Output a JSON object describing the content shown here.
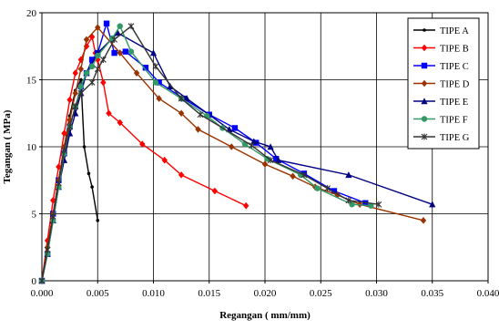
{
  "chart_data": {
    "type": "line",
    "title": "",
    "xlabel": "Regangan ( mm/mm)",
    "ylabel": "Tegangan ( MPa)",
    "xlim": [
      0,
      0.04
    ],
    "ylim": [
      0,
      20
    ],
    "x_ticks": [
      "0.000",
      "0.005",
      "0.010",
      "0.015",
      "0.020",
      "0.025",
      "0.030",
      "0.035",
      "0.040"
    ],
    "y_ticks": [
      "0",
      "5",
      "10",
      "15",
      "20"
    ],
    "grid": true,
    "legend_position": "top-right",
    "series": [
      {
        "name": "TIPE A",
        "color": "#000000",
        "marker": "dot",
        "points": [
          [
            0,
            0
          ],
          [
            0.0005,
            2.5
          ],
          [
            0.001,
            5
          ],
          [
            0.0015,
            7.5
          ],
          [
            0.002,
            10
          ],
          [
            0.0025,
            12.3
          ],
          [
            0.003,
            14.2
          ],
          [
            0.0035,
            15
          ],
          [
            0.0038,
            10
          ],
          [
            0.0042,
            8
          ],
          [
            0.0045,
            7
          ],
          [
            0.005,
            4.5
          ]
        ]
      },
      {
        "name": "TIPE B",
        "color": "#ff0000",
        "marker": "diamond",
        "points": [
          [
            0,
            0
          ],
          [
            0.0005,
            3
          ],
          [
            0.001,
            6
          ],
          [
            0.0015,
            8.5
          ],
          [
            0.002,
            11
          ],
          [
            0.0025,
            13.5
          ],
          [
            0.003,
            15.5
          ],
          [
            0.0035,
            16.5
          ],
          [
            0.004,
            17.5
          ],
          [
            0.0045,
            18.2
          ],
          [
            0.0048,
            17
          ],
          [
            0.005,
            16.5
          ],
          [
            0.0055,
            14.8
          ],
          [
            0.006,
            12.5
          ],
          [
            0.007,
            11.8
          ],
          [
            0.009,
            10.2
          ],
          [
            0.011,
            9
          ],
          [
            0.0125,
            7.9
          ],
          [
            0.0155,
            6.7
          ],
          [
            0.0183,
            5.6
          ]
        ]
      },
      {
        "name": "TIPE C",
        "color": "#0000ff",
        "marker": "square",
        "points": [
          [
            0,
            0
          ],
          [
            0.0005,
            2
          ],
          [
            0.001,
            5
          ],
          [
            0.0015,
            7.5
          ],
          [
            0.002,
            9.5
          ],
          [
            0.0025,
            11.5
          ],
          [
            0.003,
            13
          ],
          [
            0.0035,
            14.5
          ],
          [
            0.004,
            15.5
          ],
          [
            0.0045,
            16.5
          ],
          [
            0.005,
            17
          ],
          [
            0.0058,
            19.2
          ],
          [
            0.0065,
            17
          ],
          [
            0.0075,
            17.1
          ],
          [
            0.0093,
            15.9
          ],
          [
            0.0105,
            14.8
          ],
          [
            0.0127,
            13.6
          ],
          [
            0.015,
            12.4
          ],
          [
            0.0173,
            11.4
          ],
          [
            0.0192,
            10.3
          ],
          [
            0.021,
            9.1
          ],
          [
            0.0235,
            8
          ],
          [
            0.0262,
            6.7
          ],
          [
            0.029,
            5.8
          ]
        ]
      },
      {
        "name": "TIPE D",
        "color": "#993300",
        "marker": "diamond",
        "points": [
          [
            0,
            0
          ],
          [
            0.0005,
            2.5
          ],
          [
            0.001,
            5
          ],
          [
            0.0015,
            7.5
          ],
          [
            0.002,
            10
          ],
          [
            0.0025,
            12
          ],
          [
            0.003,
            14
          ],
          [
            0.0035,
            15.8
          ],
          [
            0.004,
            18
          ],
          [
            0.005,
            18.9
          ],
          [
            0.007,
            17
          ],
          [
            0.0085,
            15.5
          ],
          [
            0.0105,
            13.6
          ],
          [
            0.0125,
            12.5
          ],
          [
            0.014,
            11.3
          ],
          [
            0.017,
            10
          ],
          [
            0.02,
            8.7
          ],
          [
            0.0225,
            7.8
          ],
          [
            0.0245,
            7
          ],
          [
            0.0265,
            6.4
          ],
          [
            0.0285,
            5.7
          ],
          [
            0.0342,
            4.5
          ]
        ]
      },
      {
        "name": "TIPE E",
        "color": "#000080",
        "marker": "triangle",
        "points": [
          [
            0,
            0
          ],
          [
            0.0005,
            2
          ],
          [
            0.001,
            4.5
          ],
          [
            0.0015,
            7
          ],
          [
            0.002,
            9
          ],
          [
            0.0025,
            11
          ],
          [
            0.003,
            12.5
          ],
          [
            0.0035,
            14
          ],
          [
            0.004,
            15.5
          ],
          [
            0.005,
            17
          ],
          [
            0.0068,
            18.5
          ],
          [
            0.01,
            17
          ],
          [
            0.0115,
            14.5
          ],
          [
            0.013,
            13.6
          ],
          [
            0.0168,
            11.3
          ],
          [
            0.019,
            10.4
          ],
          [
            0.0205,
            10
          ],
          [
            0.0212,
            9
          ],
          [
            0.0275,
            7.9
          ],
          [
            0.035,
            5.7
          ]
        ]
      },
      {
        "name": "TIPE F",
        "color": "#339966",
        "marker": "circle",
        "points": [
          [
            0,
            0
          ],
          [
            0.0005,
            2
          ],
          [
            0.001,
            4.5
          ],
          [
            0.0015,
            7
          ],
          [
            0.002,
            9.5
          ],
          [
            0.0025,
            11.5
          ],
          [
            0.003,
            13
          ],
          [
            0.0035,
            14.5
          ],
          [
            0.004,
            15.5
          ],
          [
            0.0045,
            16
          ],
          [
            0.005,
            16.8
          ],
          [
            0.0063,
            18.1
          ],
          [
            0.007,
            19
          ],
          [
            0.008,
            17.1
          ],
          [
            0.0102,
            14.8
          ],
          [
            0.0125,
            13.6
          ],
          [
            0.0148,
            12.3
          ],
          [
            0.0162,
            11.4
          ],
          [
            0.0182,
            10.2
          ],
          [
            0.0202,
            9.1
          ],
          [
            0.0232,
            7.9
          ],
          [
            0.0247,
            6.9
          ],
          [
            0.0278,
            5.7
          ],
          [
            0.0295,
            5.6
          ]
        ]
      },
      {
        "name": "TIPE G",
        "color": "#333333",
        "marker": "star",
        "points": [
          [
            0,
            0
          ],
          [
            0.0005,
            2.3
          ],
          [
            0.001,
            4.8
          ],
          [
            0.0015,
            7.3
          ],
          [
            0.002,
            9.7
          ],
          [
            0.0025,
            11.5
          ],
          [
            0.003,
            13
          ],
          [
            0.0035,
            14
          ],
          [
            0.0045,
            14.8
          ],
          [
            0.005,
            15.8
          ],
          [
            0.0055,
            16.5
          ],
          [
            0.0065,
            18
          ],
          [
            0.008,
            19
          ],
          [
            0.0102,
            16
          ],
          [
            0.0125,
            13.6
          ],
          [
            0.0142,
            12.4
          ],
          [
            0.0188,
            10.1
          ],
          [
            0.0205,
            9
          ],
          [
            0.0235,
            7.9
          ],
          [
            0.0256,
            6.9
          ],
          [
            0.0275,
            6
          ],
          [
            0.0302,
            5.7
          ]
        ]
      }
    ]
  }
}
